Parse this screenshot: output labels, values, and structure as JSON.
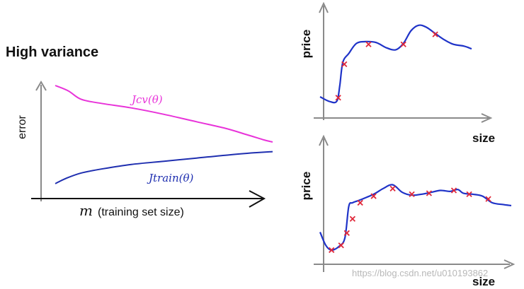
{
  "title": "High variance",
  "colors": {
    "cv": "#e833d9",
    "train": "#1f2fb0",
    "fit": "#1f33c8",
    "marker": "#e0283a",
    "axis": "#8a8a8a"
  },
  "watermark": "https://blog.csdn.net/u010193862",
  "chart_data": [
    {
      "type": "line",
      "xlabel_var": "m",
      "xlabel": "(training set size)",
      "ylabel": "error",
      "xlim": [
        0,
        100
      ],
      "ylim": [
        0,
        100
      ],
      "series": [
        {
          "name": "J_cv(θ)",
          "label": "Jcv(θ)",
          "x": [
            0,
            6,
            12,
            22,
            35,
            50,
            65,
            78,
            88,
            96,
            100
          ],
          "y": [
            100,
            95,
            87,
            83,
            79,
            73,
            66,
            60,
            54,
            49,
            47
          ]
        },
        {
          "name": "J_train(θ)",
          "label": "Jtrain(θ)",
          "x": [
            0,
            5,
            12,
            22,
            35,
            50,
            65,
            80,
            92,
            100
          ],
          "y": [
            8,
            13,
            18,
            22,
            26,
            29,
            32,
            35,
            37,
            38
          ]
        }
      ]
    },
    {
      "type": "scatter",
      "xlabel": "size",
      "ylabel": "price",
      "xlim": [
        0,
        100
      ],
      "ylim": [
        0,
        100
      ],
      "points": {
        "x": [
          12,
          16,
          32,
          55,
          76
        ],
        "y": [
          17,
          54,
          76,
          76,
          87
        ]
      },
      "fit": {
        "x": [
          0,
          6,
          11,
          13,
          15,
          19,
          24,
          30,
          37,
          44,
          50,
          55,
          60,
          65,
          70,
          76,
          82,
          88,
          95,
          100
        ],
        "y": [
          18,
          13,
          13,
          30,
          56,
          66,
          77,
          79,
          78,
          72,
          70,
          77,
          91,
          97,
          95,
          88,
          81,
          76,
          74,
          71
        ]
      }
    },
    {
      "type": "scatter",
      "xlabel": "size",
      "ylabel": "price",
      "xlim": [
        0,
        100
      ],
      "ylim": [
        0,
        100
      ],
      "points": {
        "x": [
          6,
          11,
          14,
          17,
          21,
          28,
          38,
          48,
          57,
          70,
          78,
          88
        ],
        "y": [
          9,
          14,
          27,
          42,
          59,
          66,
          74,
          68,
          69,
          72,
          68,
          63
        ]
      },
      "fit": {
        "x": [
          0,
          3,
          6,
          10,
          13,
          15,
          17,
          21,
          28,
          33,
          38,
          43,
          48,
          53,
          58,
          63,
          68,
          72,
          75,
          80,
          85,
          90,
          96,
          100
        ],
        "y": [
          28,
          14,
          9,
          13,
          22,
          55,
          59,
          62,
          68,
          74,
          78,
          70,
          67,
          68,
          70,
          72,
          71,
          73,
          69,
          68,
          66,
          59,
          57,
          56
        ]
      }
    }
  ]
}
